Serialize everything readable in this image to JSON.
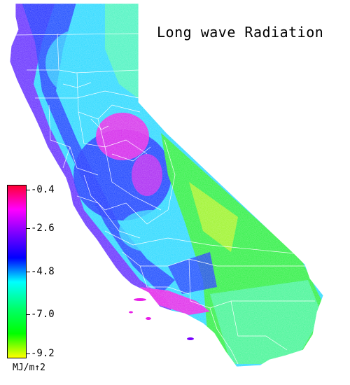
{
  "map": {
    "title": "Long wave Radiation",
    "region": "California",
    "colorbar": {
      "ticks": [
        "-0.4",
        "-2.6",
        "-4.8",
        "-7.0",
        "-9.2"
      ],
      "units": "MJ/m↑2",
      "colors": [
        "#ff0033",
        "#ff00ff",
        "#7a00ff",
        "#0000ff",
        "#00ffff",
        "#00ff66",
        "#00ff00",
        "#ffff00"
      ]
    },
    "palette": {
      "magenta": "#e81ee8",
      "purple": "#6a1cff",
      "blue": "#1530ff",
      "cyan": "#28d8ff",
      "aqua": "#4cf6b8",
      "green": "#2cf038",
      "lime": "#b8f420",
      "border": "#ffffff"
    }
  }
}
